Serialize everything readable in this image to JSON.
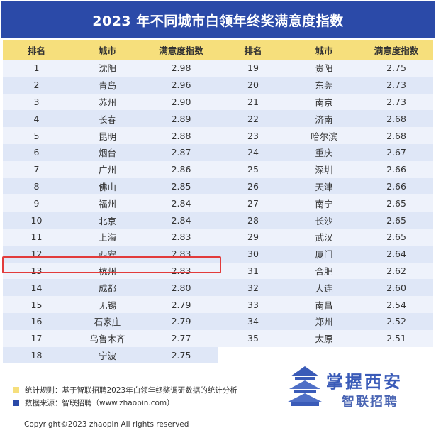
{
  "title": "2023 年不同城市白领年终奖满意度指数",
  "chart_data": {
    "type": "table",
    "columns": [
      "排名",
      "城市",
      "满意度指数"
    ],
    "rows": [
      {
        "rank": "1",
        "city": "沈阳",
        "score": "2.98"
      },
      {
        "rank": "2",
        "city": "青岛",
        "score": "2.96"
      },
      {
        "rank": "3",
        "city": "苏州",
        "score": "2.90"
      },
      {
        "rank": "4",
        "city": "长春",
        "score": "2.89"
      },
      {
        "rank": "5",
        "city": "昆明",
        "score": "2.88"
      },
      {
        "rank": "6",
        "city": "烟台",
        "score": "2.87"
      },
      {
        "rank": "7",
        "city": "广州",
        "score": "2.86"
      },
      {
        "rank": "8",
        "city": "佛山",
        "score": "2.85"
      },
      {
        "rank": "9",
        "city": "福州",
        "score": "2.84"
      },
      {
        "rank": "10",
        "city": "北京",
        "score": "2.84"
      },
      {
        "rank": "11",
        "city": "上海",
        "score": "2.83"
      },
      {
        "rank": "12",
        "city": "西安",
        "score": "2.83"
      },
      {
        "rank": "13",
        "city": "杭州",
        "score": "2.83"
      },
      {
        "rank": "14",
        "city": "成都",
        "score": "2.80"
      },
      {
        "rank": "15",
        "city": "无锡",
        "score": "2.79"
      },
      {
        "rank": "16",
        "city": "石家庄",
        "score": "2.79"
      },
      {
        "rank": "17",
        "city": "乌鲁木齐",
        "score": "2.77"
      },
      {
        "rank": "18",
        "city": "宁波",
        "score": "2.75"
      },
      {
        "rank": "19",
        "city": "贵阳",
        "score": "2.75"
      },
      {
        "rank": "20",
        "city": "东莞",
        "score": "2.73"
      },
      {
        "rank": "21",
        "city": "南京",
        "score": "2.73"
      },
      {
        "rank": "22",
        "city": "济南",
        "score": "2.68"
      },
      {
        "rank": "23",
        "city": "哈尔滨",
        "score": "2.68"
      },
      {
        "rank": "24",
        "city": "重庆",
        "score": "2.67"
      },
      {
        "rank": "25",
        "city": "深圳",
        "score": "2.66"
      },
      {
        "rank": "26",
        "city": "天津",
        "score": "2.66"
      },
      {
        "rank": "27",
        "city": "南宁",
        "score": "2.65"
      },
      {
        "rank": "28",
        "city": "长沙",
        "score": "2.65"
      },
      {
        "rank": "29",
        "city": "武汉",
        "score": "2.65"
      },
      {
        "rank": "30",
        "city": "厦门",
        "score": "2.64"
      },
      {
        "rank": "31",
        "city": "合肥",
        "score": "2.62"
      },
      {
        "rank": "32",
        "city": "大连",
        "score": "2.60"
      },
      {
        "rank": "33",
        "city": "南昌",
        "score": "2.54"
      },
      {
        "rank": "34",
        "city": "郑州",
        "score": "2.52"
      },
      {
        "rank": "35",
        "city": "太原",
        "score": "2.51"
      }
    ],
    "highlighted_rank": "12"
  },
  "notes": {
    "rule_label": "统计规则：",
    "rule_text": "基于智联招聘2023年白领年终奖调研数据的统计分析",
    "source_label": "数据来源：",
    "source_text": "智联招聘（www.zhaopin.com）",
    "rule_color": "#f6df7c",
    "source_color": "#2b4aa8"
  },
  "copyright": "Copyright©2023 zhaopin All rights reserved",
  "watermark": {
    "text": "掌握西安",
    "sub": "智联招聘",
    "icon": "pagoda-icon"
  },
  "colors": {
    "title_bg": "#2b4aa8",
    "header_bg": "#f6df7c",
    "row_odd": "#eef2fb",
    "row_even": "#dfe7f7",
    "highlight": "#e23b3b"
  }
}
